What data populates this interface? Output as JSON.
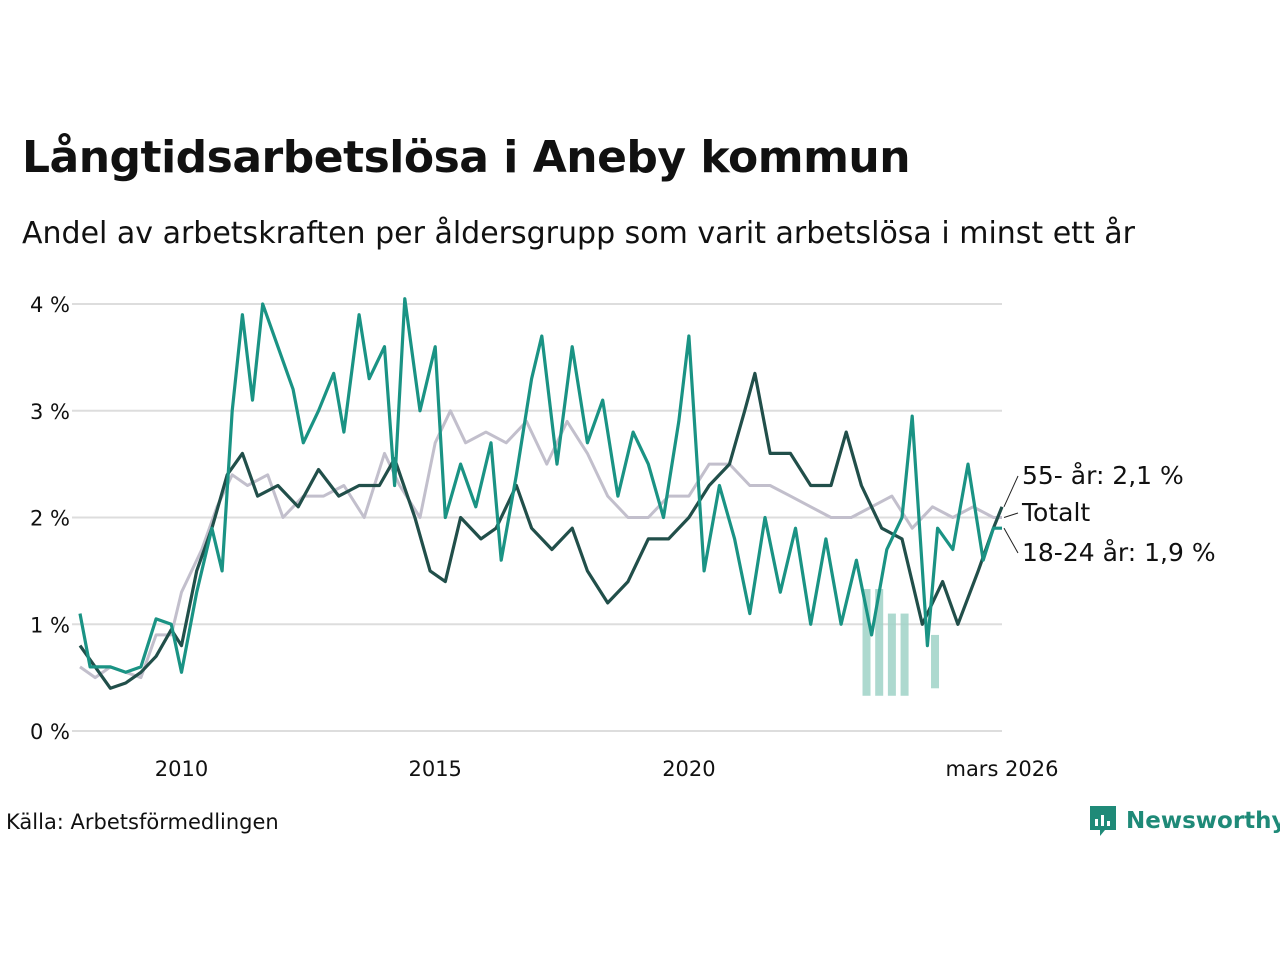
{
  "header": {
    "title": "Långtidsarbetslösa i Aneby kommun",
    "subtitle": "Andel av arbetskraften per åldersgrupp som varit arbetslösa i minst ett år"
  },
  "footer": {
    "source": "Källa: Arbetsförmedlingen",
    "brand": "Newsworthy"
  },
  "colors": {
    "young": "#1a9384",
    "old": "#214f4a",
    "total": "#c2bfcc",
    "grid": "#dddddd",
    "band": "#9fd2c7"
  },
  "chart_data": {
    "type": "line",
    "title": "Långtidsarbetslösa i Aneby kommun",
    "subtitle": "Andel av arbetskraften per åldersgrupp som varit arbetslösa i minst ett år",
    "ylabel": "",
    "ylim": [
      0,
      4.2
    ],
    "xlim": [
      2008.0,
      2026.17
    ],
    "yticks": [
      {
        "value": 0,
        "label": "0 %"
      },
      {
        "value": 1,
        "label": "1 %"
      },
      {
        "value": 2,
        "label": "2 %"
      },
      {
        "value": 3,
        "label": "3 %"
      },
      {
        "value": 4,
        "label": "4 %"
      }
    ],
    "xticks": [
      {
        "value": 2010,
        "label": "2010"
      },
      {
        "value": 2015,
        "label": "2015"
      },
      {
        "value": 2020,
        "label": "2020"
      },
      {
        "value": 2026.17,
        "label": "mars 2026"
      }
    ],
    "uncertainty_band": {
      "series": "18-24 år",
      "points": [
        [
          2023.5,
          1.33,
          0.33
        ],
        [
          2023.75,
          1.33,
          0.33
        ],
        [
          2024.0,
          1.1,
          0.33
        ],
        [
          2024.25,
          1.1,
          0.33
        ],
        [
          2024.85,
          0.9,
          0.4
        ]
      ]
    },
    "series": [
      {
        "name": "Totalt",
        "color_key": "total",
        "end_label": "Totalt",
        "points": [
          [
            2008.0,
            0.6
          ],
          [
            2008.3,
            0.5
          ],
          [
            2008.6,
            0.6
          ],
          [
            2008.9,
            0.55
          ],
          [
            2009.2,
            0.5
          ],
          [
            2009.5,
            0.9
          ],
          [
            2009.8,
            0.9
          ],
          [
            2010.0,
            1.3
          ],
          [
            2010.4,
            1.7
          ],
          [
            2010.7,
            2.1
          ],
          [
            2011.0,
            2.4
          ],
          [
            2011.3,
            2.3
          ],
          [
            2011.7,
            2.4
          ],
          [
            2012.0,
            2.0
          ],
          [
            2012.4,
            2.2
          ],
          [
            2012.8,
            2.2
          ],
          [
            2013.2,
            2.3
          ],
          [
            2013.6,
            2.0
          ],
          [
            2014.0,
            2.6
          ],
          [
            2014.3,
            2.3
          ],
          [
            2014.7,
            2.0
          ],
          [
            2015.0,
            2.7
          ],
          [
            2015.3,
            3.0
          ],
          [
            2015.6,
            2.7
          ],
          [
            2016.0,
            2.8
          ],
          [
            2016.4,
            2.7
          ],
          [
            2016.8,
            2.9
          ],
          [
            2017.2,
            2.5
          ],
          [
            2017.6,
            2.9
          ],
          [
            2018.0,
            2.6
          ],
          [
            2018.4,
            2.2
          ],
          [
            2018.8,
            2.0
          ],
          [
            2019.2,
            2.0
          ],
          [
            2019.6,
            2.2
          ],
          [
            2020.0,
            2.2
          ],
          [
            2020.4,
            2.5
          ],
          [
            2020.8,
            2.5
          ],
          [
            2021.2,
            2.3
          ],
          [
            2021.6,
            2.3
          ],
          [
            2022.0,
            2.2
          ],
          [
            2022.4,
            2.1
          ],
          [
            2022.8,
            2.0
          ],
          [
            2023.2,
            2.0
          ],
          [
            2023.6,
            2.1
          ],
          [
            2024.0,
            2.2
          ],
          [
            2024.4,
            1.9
          ],
          [
            2024.8,
            2.1
          ],
          [
            2025.2,
            2.0
          ],
          [
            2025.6,
            2.1
          ],
          [
            2026.0,
            2.0
          ],
          [
            2026.17,
            2.0
          ]
        ]
      },
      {
        "name": "55- år",
        "color_key": "old",
        "end_label": "55- år: 2,1 %",
        "points": [
          [
            2008.0,
            0.8
          ],
          [
            2008.3,
            0.6
          ],
          [
            2008.6,
            0.4
          ],
          [
            2008.9,
            0.45
          ],
          [
            2009.2,
            0.55
          ],
          [
            2009.5,
            0.7
          ],
          [
            2009.8,
            0.95
          ],
          [
            2010.0,
            0.8
          ],
          [
            2010.3,
            1.5
          ],
          [
            2010.6,
            1.9
          ],
          [
            2010.9,
            2.4
          ],
          [
            2011.2,
            2.6
          ],
          [
            2011.5,
            2.2
          ],
          [
            2011.9,
            2.3
          ],
          [
            2012.3,
            2.1
          ],
          [
            2012.7,
            2.45
          ],
          [
            2013.1,
            2.2
          ],
          [
            2013.5,
            2.3
          ],
          [
            2013.9,
            2.3
          ],
          [
            2014.2,
            2.55
          ],
          [
            2014.6,
            2.0
          ],
          [
            2014.9,
            1.5
          ],
          [
            2015.2,
            1.4
          ],
          [
            2015.5,
            2.0
          ],
          [
            2015.9,
            1.8
          ],
          [
            2016.2,
            1.9
          ],
          [
            2016.6,
            2.3
          ],
          [
            2016.9,
            1.9
          ],
          [
            2017.3,
            1.7
          ],
          [
            2017.7,
            1.9
          ],
          [
            2018.0,
            1.5
          ],
          [
            2018.4,
            1.2
          ],
          [
            2018.8,
            1.4
          ],
          [
            2019.2,
            1.8
          ],
          [
            2019.6,
            1.8
          ],
          [
            2020.0,
            2.0
          ],
          [
            2020.4,
            2.3
          ],
          [
            2020.8,
            2.5
          ],
          [
            2021.1,
            3.0
          ],
          [
            2021.3,
            3.35
          ],
          [
            2021.6,
            2.6
          ],
          [
            2022.0,
            2.6
          ],
          [
            2022.4,
            2.3
          ],
          [
            2022.8,
            2.3
          ],
          [
            2023.1,
            2.8
          ],
          [
            2023.4,
            2.3
          ],
          [
            2023.8,
            1.9
          ],
          [
            2024.2,
            1.8
          ],
          [
            2024.6,
            1.0
          ],
          [
            2025.0,
            1.4
          ],
          [
            2025.3,
            1.0
          ],
          [
            2025.7,
            1.5
          ],
          [
            2026.0,
            1.9
          ],
          [
            2026.17,
            2.1
          ]
        ]
      },
      {
        "name": "18-24 år",
        "color_key": "young",
        "end_label": "18-24 år: 1,9 %",
        "points": [
          [
            2008.0,
            1.1
          ],
          [
            2008.2,
            0.6
          ],
          [
            2008.6,
            0.6
          ],
          [
            2008.9,
            0.55
          ],
          [
            2009.2,
            0.6
          ],
          [
            2009.5,
            1.05
          ],
          [
            2009.8,
            1.0
          ],
          [
            2010.0,
            0.55
          ],
          [
            2010.3,
            1.3
          ],
          [
            2010.6,
            1.9
          ],
          [
            2010.8,
            1.5
          ],
          [
            2011.0,
            3.0
          ],
          [
            2011.2,
            3.9
          ],
          [
            2011.4,
            3.1
          ],
          [
            2011.6,
            4.0
          ],
          [
            2011.9,
            3.6
          ],
          [
            2012.2,
            3.2
          ],
          [
            2012.4,
            2.7
          ],
          [
            2012.7,
            3.0
          ],
          [
            2013.0,
            3.35
          ],
          [
            2013.2,
            2.8
          ],
          [
            2013.5,
            3.9
          ],
          [
            2013.7,
            3.3
          ],
          [
            2014.0,
            3.6
          ],
          [
            2014.2,
            2.3
          ],
          [
            2014.4,
            4.05
          ],
          [
            2014.7,
            3.0
          ],
          [
            2015.0,
            3.6
          ],
          [
            2015.2,
            2.0
          ],
          [
            2015.5,
            2.5
          ],
          [
            2015.8,
            2.1
          ],
          [
            2016.1,
            2.7
          ],
          [
            2016.3,
            1.6
          ],
          [
            2016.6,
            2.4
          ],
          [
            2016.9,
            3.3
          ],
          [
            2017.1,
            3.7
          ],
          [
            2017.4,
            2.5
          ],
          [
            2017.7,
            3.6
          ],
          [
            2018.0,
            2.7
          ],
          [
            2018.3,
            3.1
          ],
          [
            2018.6,
            2.2
          ],
          [
            2018.9,
            2.8
          ],
          [
            2019.2,
            2.5
          ],
          [
            2019.5,
            2.0
          ],
          [
            2019.8,
            2.9
          ],
          [
            2020.0,
            3.7
          ],
          [
            2020.3,
            1.5
          ],
          [
            2020.6,
            2.3
          ],
          [
            2020.9,
            1.8
          ],
          [
            2021.2,
            1.1
          ],
          [
            2021.5,
            2.0
          ],
          [
            2021.8,
            1.3
          ],
          [
            2022.1,
            1.9
          ],
          [
            2022.4,
            1.0
          ],
          [
            2022.7,
            1.8
          ],
          [
            2023.0,
            1.0
          ],
          [
            2023.3,
            1.6
          ],
          [
            2023.6,
            0.9
          ],
          [
            2023.9,
            1.7
          ],
          [
            2024.2,
            2.0
          ],
          [
            2024.4,
            2.95
          ],
          [
            2024.7,
            0.8
          ],
          [
            2024.9,
            1.9
          ],
          [
            2025.2,
            1.7
          ],
          [
            2025.5,
            2.5
          ],
          [
            2025.8,
            1.6
          ],
          [
            2026.0,
            1.9
          ],
          [
            2026.17,
            1.9
          ]
        ]
      }
    ]
  }
}
